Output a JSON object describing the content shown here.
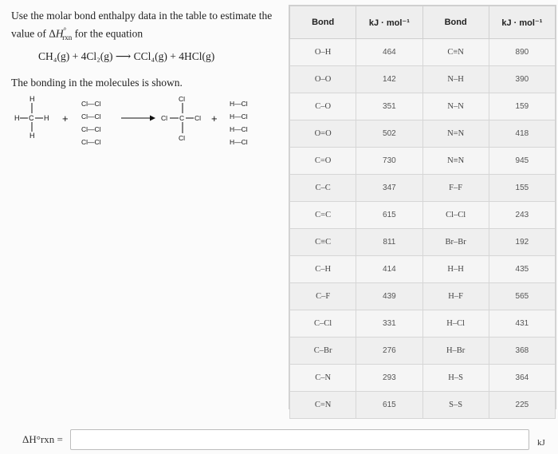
{
  "question": {
    "prompt_line1": "Use the molar bond enthalpy data in the table to estimate the",
    "prompt_line2_pre": "value of Δ",
    "prompt_line2_sym": "H",
    "prompt_line2_sup": "°",
    "prompt_line2_sub": "rxn",
    "prompt_line2_post": " for the equation",
    "equation": "CH₄(g) + 4Cl₂(g) ⟶ CCl₄(g) + 4HCl(g)",
    "bonding_text": "The bonding in the molecules is shown."
  },
  "diagram": {
    "H": "H",
    "C": "C",
    "Cl": "Cl",
    "plus": "+",
    "cl2": "Cl—Cl",
    "hcl": "H—Cl"
  },
  "table": {
    "headers": [
      "Bond",
      "kJ · mol⁻¹",
      "Bond",
      "kJ · mol⁻¹"
    ],
    "rows": [
      [
        "O–H",
        "464",
        "C≡N",
        "890"
      ],
      [
        "O–O",
        "142",
        "N–H",
        "390"
      ],
      [
        "C–O",
        "351",
        "N–N",
        "159"
      ],
      [
        "O=O",
        "502",
        "N=N",
        "418"
      ],
      [
        "C=O",
        "730",
        "N≡N",
        "945"
      ],
      [
        "C–C",
        "347",
        "F–F",
        "155"
      ],
      [
        "C=C",
        "615",
        "Cl–Cl",
        "243"
      ],
      [
        "C≡C",
        "811",
        "Br–Br",
        "192"
      ],
      [
        "C–H",
        "414",
        "H–H",
        "435"
      ],
      [
        "C–F",
        "439",
        "H–F",
        "565"
      ],
      [
        "C–Cl",
        "331",
        "H–Cl",
        "431"
      ],
      [
        "C–Br",
        "276",
        "H–Br",
        "368"
      ],
      [
        "C–N",
        "293",
        "H–S",
        "364"
      ],
      [
        "C=N",
        "615",
        "S–S",
        "225"
      ]
    ]
  },
  "answer": {
    "label": "ΔH°rxn =",
    "value": "",
    "unit": "kJ"
  }
}
